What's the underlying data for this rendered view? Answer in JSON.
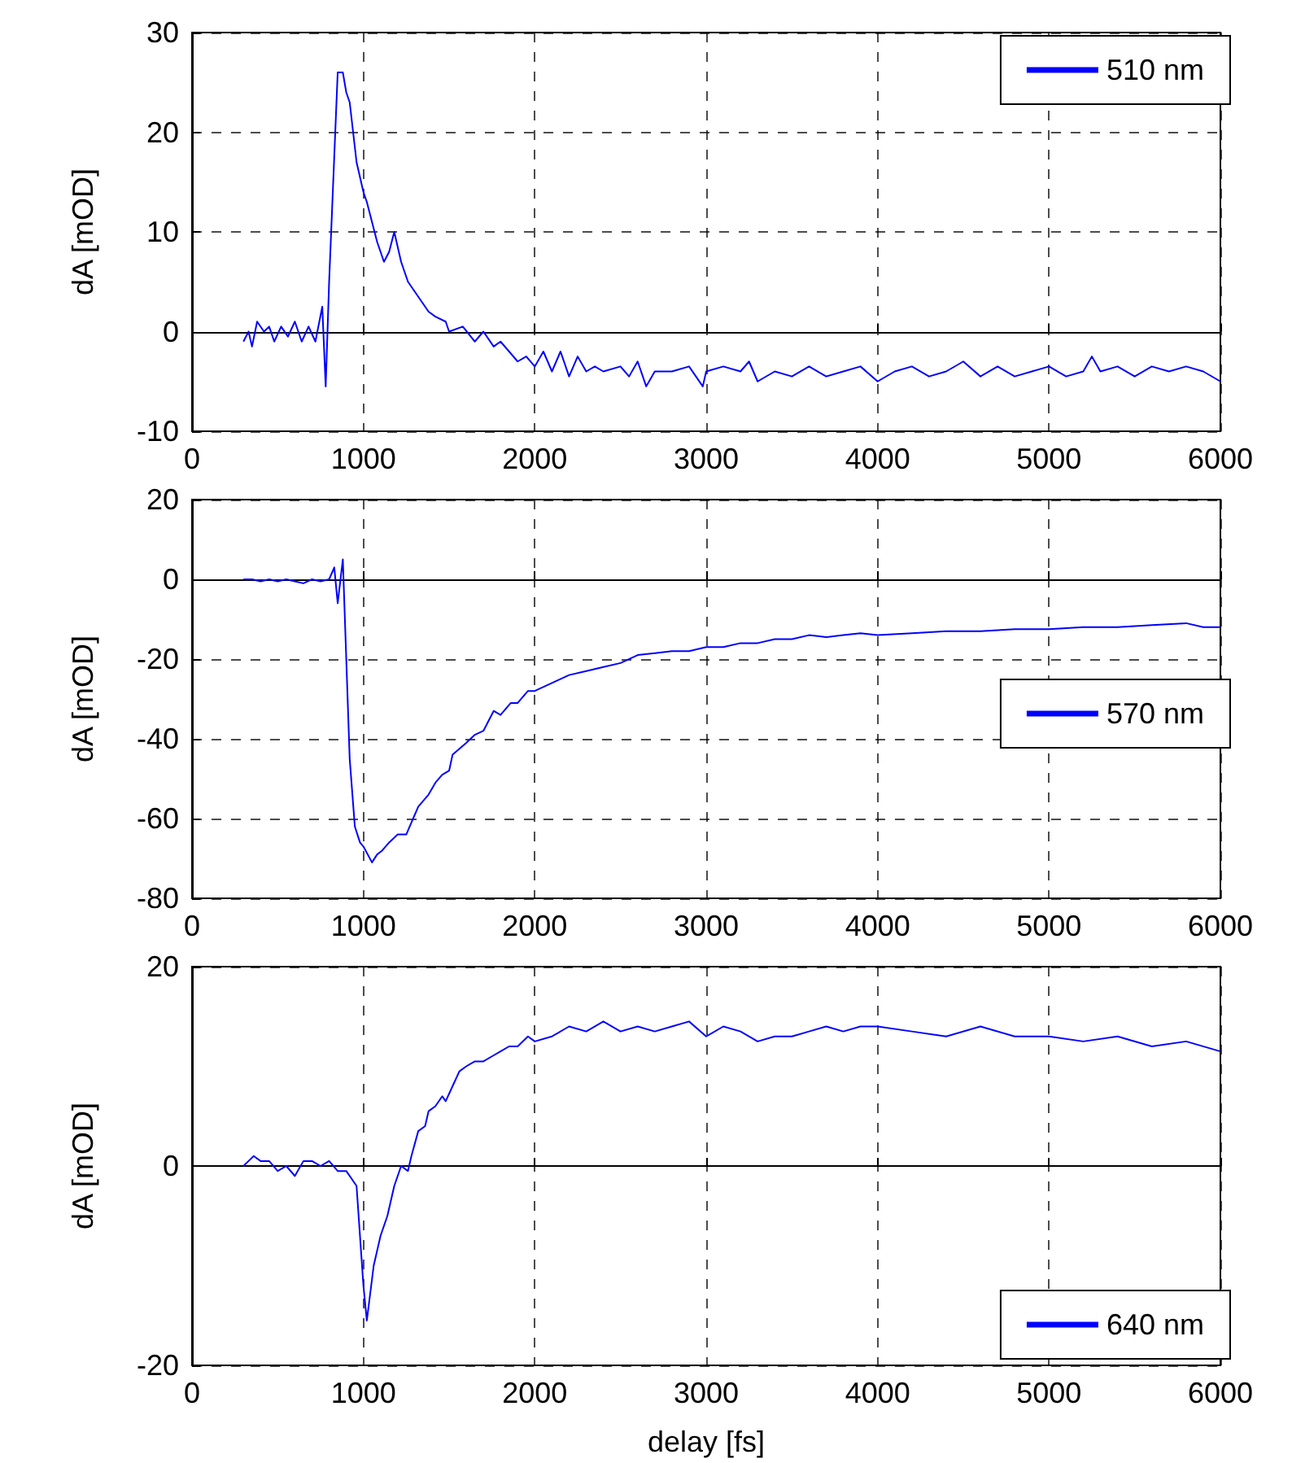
{
  "chart_data": [
    {
      "type": "line",
      "ylabel": "dA [mOD]",
      "xlim": [
        0,
        6000
      ],
      "ylim": [
        -10,
        30
      ],
      "xticks": [
        0,
        1000,
        2000,
        3000,
        4000,
        5000,
        6000
      ],
      "yticks": [
        -10,
        0,
        10,
        20,
        30
      ],
      "grid": true,
      "legend": "top right",
      "series": [
        {
          "name": "510 nm",
          "color": "#0000ff",
          "x": [
            300,
            330,
            350,
            380,
            420,
            450,
            480,
            520,
            560,
            600,
            640,
            680,
            720,
            760,
            780,
            800,
            850,
            880,
            900,
            920,
            960,
            1000,
            1020,
            1080,
            1120,
            1150,
            1180,
            1220,
            1260,
            1300,
            1340,
            1380,
            1420,
            1480,
            1500,
            1580,
            1650,
            1700,
            1760,
            1800,
            1850,
            1900,
            1950,
            2000,
            2050,
            2100,
            2150,
            2200,
            2250,
            2300,
            2350,
            2400,
            2500,
            2550,
            2600,
            2650,
            2700,
            2800,
            2900,
            2980,
            3000,
            3100,
            3200,
            3250,
            3300,
            3400,
            3500,
            3600,
            3700,
            3800,
            3900,
            4000,
            4100,
            4200,
            4300,
            4400,
            4500,
            4600,
            4700,
            4800,
            4900,
            5000,
            5100,
            5200,
            5250,
            5300,
            5400,
            5500,
            5600,
            5700,
            5800,
            5900,
            6000
          ],
          "values": [
            -1,
            0,
            -1.5,
            1,
            0,
            0.5,
            -1,
            0.5,
            -0.5,
            1,
            -1,
            0.5,
            -1,
            2.5,
            -5.5,
            5,
            26,
            26,
            24,
            23,
            17,
            14,
            13,
            9,
            7,
            8,
            10,
            7,
            5,
            4,
            3,
            2,
            1.5,
            1,
            0,
            0.5,
            -1,
            0,
            -1.5,
            -1,
            -2,
            -3,
            -2.5,
            -3.5,
            -2,
            -4,
            -2,
            -4.5,
            -2.5,
            -4,
            -3.5,
            -4,
            -3.5,
            -4.5,
            -3,
            -5.5,
            -4,
            -4,
            -3.5,
            -5.5,
            -4,
            -3.5,
            -4,
            -3,
            -5,
            -4,
            -4.5,
            -3.5,
            -4.5,
            -4,
            -3.5,
            -5,
            -4,
            -3.5,
            -4.5,
            -4,
            -3,
            -4.5,
            -3.5,
            -4.5,
            -4,
            -3.5,
            -4.5,
            -4,
            -2.5,
            -4,
            -3.5,
            -4.5,
            -3.5,
            -4,
            -3.5,
            -4,
            -5
          ]
        }
      ]
    },
    {
      "type": "line",
      "ylabel": "dA [mOD]",
      "xlim": [
        0,
        6000
      ],
      "ylim": [
        -80,
        20
      ],
      "xticks": [
        0,
        1000,
        2000,
        3000,
        4000,
        5000,
        6000
      ],
      "yticks": [
        -80,
        -60,
        -40,
        -20,
        0,
        20
      ],
      "grid": true,
      "legend": "right",
      "series": [
        {
          "name": "570 nm",
          "color": "#0000ff",
          "x": [
            300,
            350,
            400,
            450,
            500,
            550,
            600,
            650,
            700,
            750,
            800,
            830,
            850,
            880,
            900,
            920,
            950,
            980,
            1000,
            1050,
            1080,
            1110,
            1150,
            1200,
            1250,
            1280,
            1320,
            1380,
            1420,
            1460,
            1500,
            1520,
            1600,
            1650,
            1700,
            1760,
            1800,
            1860,
            1900,
            1960,
            2000,
            2100,
            2200,
            2300,
            2400,
            2500,
            2600,
            2700,
            2800,
            2900,
            3000,
            3100,
            3200,
            3300,
            3400,
            3500,
            3600,
            3700,
            3800,
            3900,
            4000,
            4200,
            4400,
            4600,
            4800,
            5000,
            5200,
            5400,
            5600,
            5800,
            5900,
            6000
          ],
          "values": [
            0,
            0,
            -0.5,
            0,
            -0.5,
            0,
            -0.5,
            -1,
            0,
            -0.5,
            0,
            3,
            -6,
            5,
            -20,
            -45,
            -62,
            -66,
            -67,
            -71,
            -69,
            -68,
            -66,
            -64,
            -64,
            -61,
            -57,
            -54,
            -51,
            -49,
            -48,
            -44,
            -41,
            -39,
            -38,
            -33,
            -34,
            -31,
            -31,
            -28,
            -28,
            -26,
            -24,
            -23,
            -22,
            -21,
            -19,
            -18.5,
            -18,
            -18,
            -17,
            -17,
            -16,
            -16,
            -15,
            -15,
            -14,
            -14.5,
            -14,
            -13.5,
            -14,
            -13.5,
            -13,
            -13,
            -12.5,
            -12.5,
            -12,
            -12,
            -11.5,
            -11,
            -12,
            -12
          ]
        }
      ]
    },
    {
      "type": "line",
      "ylabel": "dA [mOD]",
      "xlabel": "delay [fs]",
      "xlim": [
        0,
        6000
      ],
      "ylim": [
        -20,
        20
      ],
      "xticks": [
        0,
        1000,
        2000,
        3000,
        4000,
        5000,
        6000
      ],
      "yticks": [
        -20,
        0,
        20
      ],
      "grid": true,
      "legend": "bottom right",
      "series": [
        {
          "name": "640 nm",
          "color": "#0000ff",
          "x": [
            300,
            330,
            360,
            400,
            450,
            500,
            550,
            600,
            650,
            700,
            750,
            800,
            850,
            900,
            960,
            1000,
            1020,
            1060,
            1100,
            1140,
            1180,
            1220,
            1260,
            1280,
            1320,
            1360,
            1380,
            1420,
            1460,
            1480,
            1520,
            1560,
            1600,
            1650,
            1700,
            1750,
            1800,
            1850,
            1900,
            1960,
            2000,
            2100,
            2200,
            2300,
            2400,
            2500,
            2600,
            2700,
            2800,
            2900,
            3000,
            3100,
            3200,
            3300,
            3400,
            3500,
            3600,
            3700,
            3800,
            3900,
            4000,
            4200,
            4400,
            4600,
            4800,
            5000,
            5200,
            5400,
            5600,
            5800,
            6000
          ],
          "values": [
            0,
            0.5,
            1,
            0.5,
            0.5,
            -0.5,
            0,
            -1,
            0.5,
            0.5,
            0,
            0.5,
            -0.5,
            -0.5,
            -2,
            -12,
            -15.5,
            -10,
            -7,
            -5,
            -2,
            0,
            -0.5,
            1,
            3.5,
            4,
            5.5,
            6,
            7,
            6.5,
            8,
            9.5,
            10,
            10.5,
            10.5,
            11,
            11.5,
            12,
            12,
            13,
            12.5,
            13,
            14,
            13.5,
            14.5,
            13.5,
            14,
            13.5,
            14,
            14.5,
            13,
            14,
            13.5,
            12.5,
            13,
            13,
            13.5,
            14,
            13.5,
            14,
            14,
            13.5,
            13,
            14,
            13,
            13,
            12.5,
            13,
            12,
            12.5,
            11.5
          ]
        }
      ]
    }
  ]
}
